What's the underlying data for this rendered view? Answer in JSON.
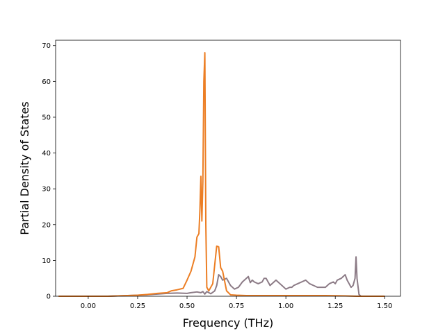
{
  "chart_data": {
    "type": "line",
    "title": "",
    "xlabel": "Frequency (THz)",
    "ylabel": "Partial Density of States",
    "xlim": [
      -0.165,
      1.58
    ],
    "ylim": [
      0,
      71.5
    ],
    "xticks": [
      0.0,
      0.25,
      0.5,
      0.75,
      1.0,
      1.25,
      1.5
    ],
    "xtick_labels": [
      "0.00",
      "0.25",
      "0.50",
      "0.75",
      "1.00",
      "1.25",
      "1.50"
    ],
    "yticks": [
      0,
      10,
      20,
      30,
      40,
      50,
      60,
      70
    ],
    "ytick_labels": [
      "0",
      "10",
      "20",
      "30",
      "40",
      "50",
      "60",
      "70"
    ],
    "grid": false,
    "legend": "none",
    "series": [
      {
        "color": "#8c7b86",
        "x": [
          -0.15,
          0.0,
          0.1,
          0.15,
          0.2,
          0.25,
          0.3,
          0.35,
          0.4,
          0.45,
          0.5,
          0.52,
          0.55,
          0.57,
          0.58,
          0.59,
          0.6,
          0.62,
          0.64,
          0.65,
          0.66,
          0.67,
          0.68,
          0.7,
          0.72,
          0.74,
          0.76,
          0.78,
          0.8,
          0.81,
          0.82,
          0.83,
          0.84,
          0.86,
          0.88,
          0.89,
          0.9,
          0.91,
          0.92,
          0.94,
          0.95,
          0.96,
          0.97,
          0.98,
          1.0,
          1.02,
          1.03,
          1.04,
          1.06,
          1.08,
          1.1,
          1.12,
          1.14,
          1.16,
          1.18,
          1.2,
          1.22,
          1.24,
          1.25,
          1.26,
          1.28,
          1.3,
          1.31,
          1.32,
          1.33,
          1.34,
          1.35,
          1.355,
          1.36,
          1.37,
          1.38,
          1.5
        ],
        "y": [
          0,
          0,
          0,
          0.1,
          0.2,
          0.3,
          0.4,
          0.6,
          0.8,
          0.9,
          0.8,
          1.0,
          1.2,
          1.0,
          1.3,
          0.6,
          1.3,
          0.7,
          1.5,
          3.0,
          6.0,
          5.5,
          4.5,
          5.0,
          3.0,
          2.0,
          2.5,
          4.0,
          5.0,
          5.5,
          3.8,
          4.5,
          4.0,
          3.5,
          4.0,
          5.0,
          5.0,
          4.0,
          3.0,
          4.0,
          4.5,
          4.0,
          3.5,
          3.0,
          2.0,
          2.5,
          2.5,
          3.0,
          3.5,
          4.0,
          4.5,
          3.5,
          3.0,
          2.5,
          2.5,
          2.5,
          3.5,
          4.0,
          3.5,
          4.5,
          5.0,
          6.0,
          4.5,
          3.5,
          2.5,
          3.0,
          5.0,
          11.0,
          5.0,
          0.5,
          0,
          0
        ]
      },
      {
        "color": "#ec7e24",
        "x": [
          -0.15,
          0.0,
          0.1,
          0.2,
          0.25,
          0.3,
          0.35,
          0.4,
          0.42,
          0.45,
          0.48,
          0.5,
          0.52,
          0.54,
          0.55,
          0.56,
          0.565,
          0.57,
          0.575,
          0.58,
          0.585,
          0.59,
          0.595,
          0.6,
          0.61,
          0.63,
          0.65,
          0.66,
          0.67,
          0.68,
          0.7,
          0.72,
          0.75,
          0.8,
          0.9,
          1.0,
          1.1,
          1.2,
          1.3,
          1.36,
          1.37,
          1.5
        ],
        "y": [
          0,
          0,
          0,
          0.2,
          0.3,
          0.5,
          0.8,
          1.0,
          1.5,
          1.8,
          2.2,
          4.5,
          7.0,
          11.0,
          16.5,
          17.5,
          24.0,
          33.5,
          21.0,
          32.0,
          60.0,
          68.0,
          20.0,
          2.5,
          1.5,
          3.5,
          14.0,
          13.8,
          8.0,
          7.0,
          1.5,
          0.4,
          0.3,
          0.2,
          0.2,
          0.2,
          0.2,
          0.2,
          0.1,
          0,
          0,
          0
        ]
      }
    ]
  }
}
